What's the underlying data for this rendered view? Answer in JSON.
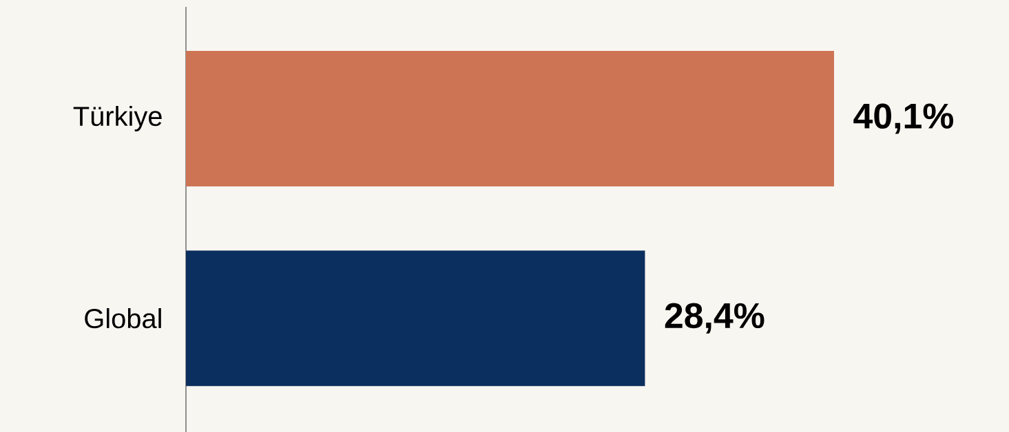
{
  "chart_data": {
    "type": "bar",
    "orientation": "horizontal",
    "categories": [
      "Türkiye",
      "Global"
    ],
    "values": [
      40.1,
      28.4
    ],
    "colors": [
      "#cd7455",
      "#0b2f5e"
    ],
    "value_labels": [
      "40,1%",
      "28,4%"
    ]
  }
}
